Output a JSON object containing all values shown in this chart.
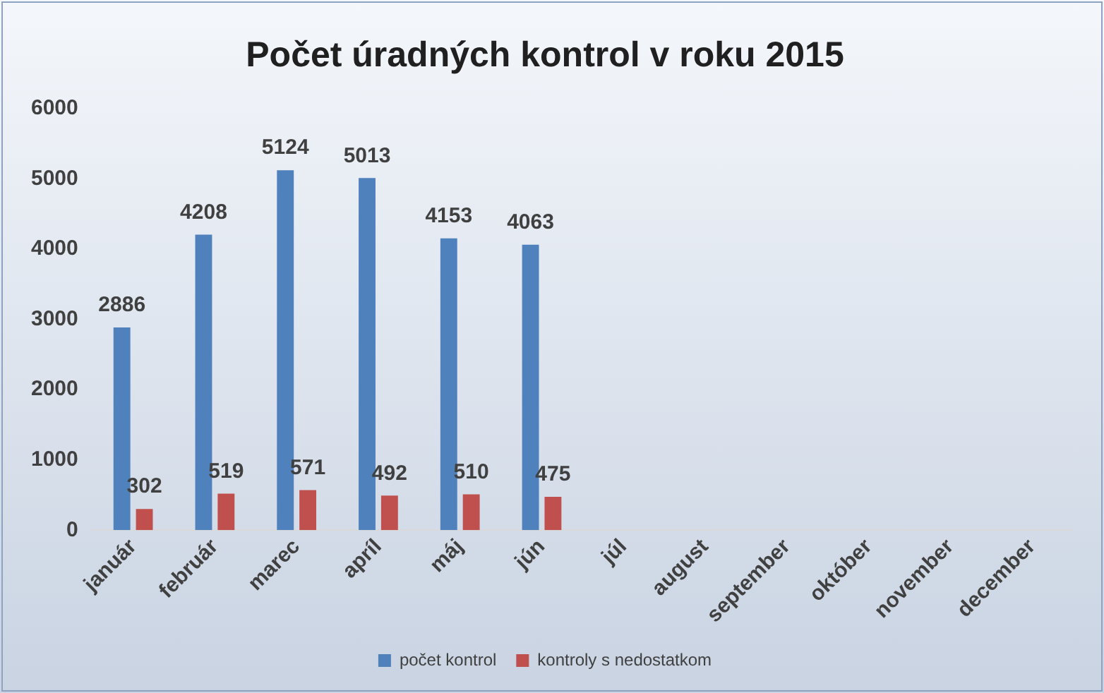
{
  "chart_data": {
    "type": "bar",
    "title": "Počet úradných kontrol v roku 2015",
    "categories": [
      "január",
      "február",
      "marec",
      "apríl",
      "máj",
      "jún",
      "júl",
      "august",
      "september",
      "október",
      "november",
      "december"
    ],
    "series": [
      {
        "name": "počet kontrol",
        "color": "#4f81bd",
        "values": [
          2886,
          4208,
          5124,
          5013,
          4153,
          4063,
          null,
          null,
          null,
          null,
          null,
          null
        ]
      },
      {
        "name": "kontroly s nedostatkom",
        "color": "#c0504d",
        "values": [
          302,
          519,
          571,
          492,
          510,
          475,
          null,
          null,
          null,
          null,
          null,
          null
        ]
      }
    ],
    "ylim": [
      0,
      6000
    ],
    "yticks": [
      0,
      1000,
      2000,
      3000,
      4000,
      5000,
      6000
    ],
    "grid": false,
    "legend": "bottom",
    "data_labels": true
  }
}
